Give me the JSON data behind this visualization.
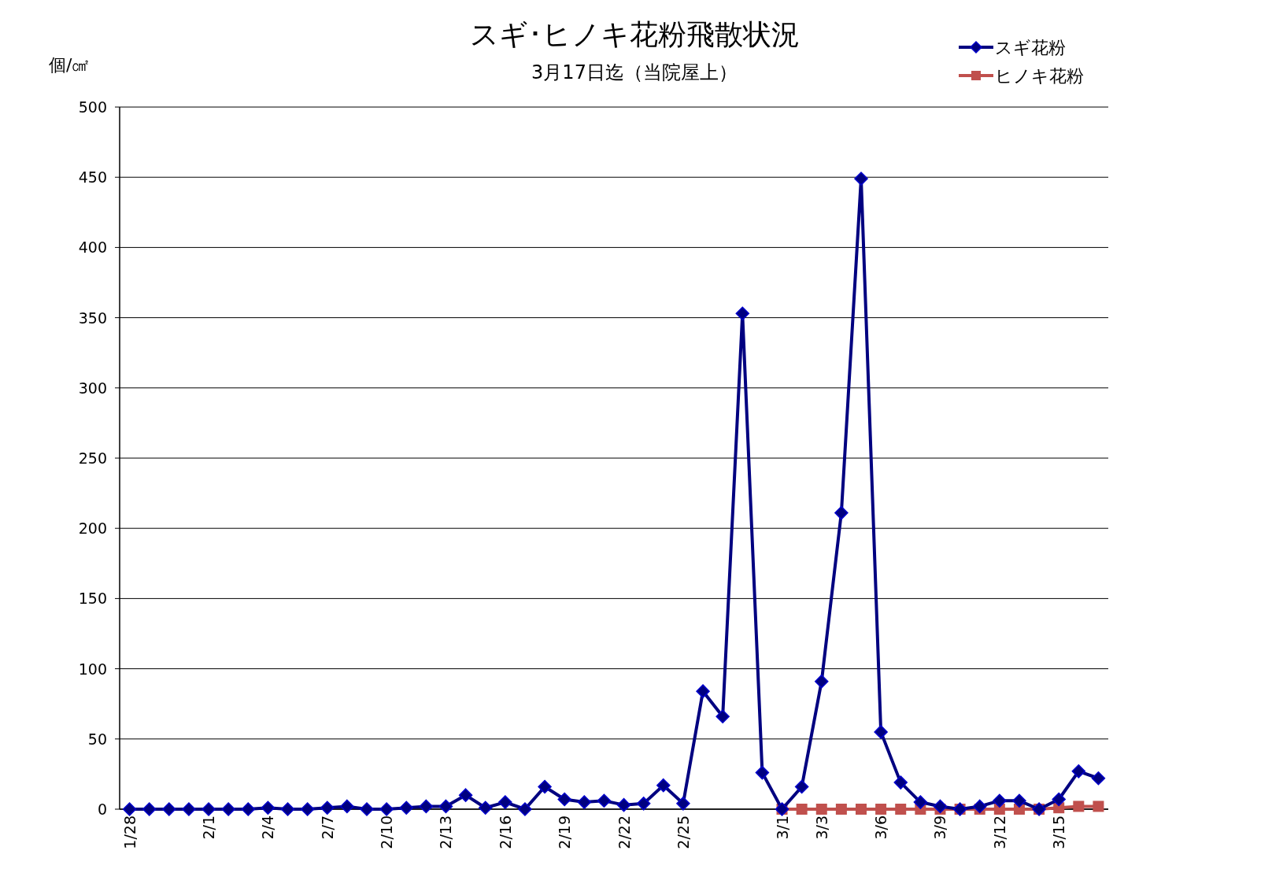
{
  "chart_data": {
    "type": "line",
    "title": "スギ･ヒノキ花粉飛散状況",
    "subtitle": "3月17日迄（当院屋上）",
    "ylabel": "個/㎠",
    "categories": [
      "1/28",
      null,
      null,
      null,
      "2/1",
      null,
      null,
      "2/4",
      null,
      null,
      "2/7",
      null,
      null,
      "2/10",
      null,
      null,
      "2/13",
      null,
      null,
      "2/16",
      null,
      null,
      "2/19",
      null,
      null,
      "2/22",
      null,
      null,
      "2/25",
      null,
      null,
      null,
      null,
      "3/1",
      null,
      "3/3",
      null,
      null,
      "3/6",
      null,
      null,
      "3/9",
      null,
      null,
      "3/12",
      null,
      null,
      "3/15",
      null,
      null
    ],
    "series": [
      {
        "name": "スギ花粉",
        "color": "#000080",
        "marker": "diamond",
        "values": [
          0,
          0,
          0,
          0,
          0,
          0,
          0,
          1,
          0,
          0,
          1,
          2,
          0,
          0,
          1,
          2,
          2,
          10,
          1,
          5,
          0,
          16,
          7,
          5,
          6,
          3,
          4,
          17,
          4,
          84,
          66,
          353,
          26,
          0,
          16,
          91,
          211,
          449,
          55,
          19,
          5,
          2,
          0,
          2,
          6,
          6,
          0,
          7,
          27,
          22
        ]
      },
      {
        "name": "ヒノキ花粉",
        "color": "#c0504d",
        "marker": "square",
        "values": [
          null,
          null,
          null,
          null,
          null,
          null,
          null,
          null,
          null,
          null,
          null,
          null,
          null,
          null,
          null,
          null,
          null,
          null,
          null,
          null,
          null,
          null,
          null,
          null,
          null,
          null,
          null,
          null,
          null,
          null,
          null,
          null,
          null,
          0,
          0,
          0,
          0,
          0,
          0,
          0,
          0,
          0,
          0,
          0,
          0,
          0,
          0,
          1,
          2,
          2
        ]
      }
    ],
    "ylim": [
      0,
      500
    ],
    "yticks": [
      0,
      50,
      100,
      150,
      200,
      250,
      300,
      350,
      400,
      450,
      500
    ],
    "grid": "y",
    "legend": "top right",
    "line_style": "solid"
  }
}
